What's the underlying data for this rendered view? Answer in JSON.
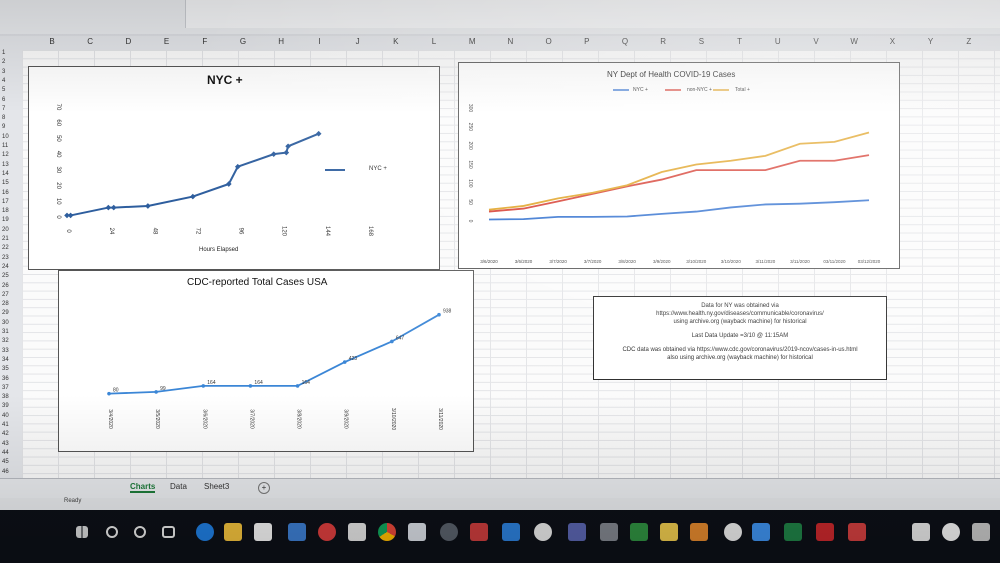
{
  "excel": {
    "columns": [
      "B",
      "C",
      "D",
      "E",
      "F",
      "G",
      "H",
      "I",
      "J",
      "K",
      "L",
      "M",
      "N",
      "O",
      "P",
      "Q",
      "R",
      "S",
      "T",
      "U",
      "V",
      "W",
      "X",
      "Y",
      "Z"
    ],
    "rows": [
      "1",
      "2",
      "3",
      "4",
      "5",
      "6",
      "7",
      "8",
      "9",
      "10",
      "11",
      "12",
      "13",
      "14",
      "15",
      "16",
      "17",
      "18",
      "19",
      "20",
      "21",
      "22",
      "23",
      "24",
      "25",
      "26",
      "27",
      "28",
      "29",
      "30",
      "31",
      "32",
      "33",
      "34",
      "35",
      "36",
      "37",
      "38",
      "39",
      "40",
      "41",
      "42",
      "43",
      "44",
      "45",
      "46"
    ],
    "sheet_tabs": [
      "Charts",
      "Data",
      "Sheet3"
    ],
    "add_sheet": "+",
    "status": "Ready"
  },
  "chart_data": [
    {
      "type": "line",
      "title": "NYC +",
      "xlabel": "Hours Elapsed",
      "ylabel": "",
      "x_ticks": [
        "0",
        "24",
        "48",
        "72",
        "96",
        "120",
        "144",
        "168"
      ],
      "y_ticks": [
        "0",
        "10",
        "20",
        "30",
        "40",
        "50",
        "60",
        "70"
      ],
      "xlim": [
        0,
        168
      ],
      "ylim": [
        0,
        70
      ],
      "legend": "right",
      "color": "#2e5e9e",
      "series": [
        {
          "name": "NYC +",
          "x": [
            0,
            2,
            23,
            26,
            45,
            70,
            90,
            95,
            115,
            122,
            123,
            140
          ],
          "y": [
            1,
            1,
            6,
            6,
            7,
            13,
            21,
            32,
            40,
            41,
            45,
            53
          ]
        }
      ]
    },
    {
      "type": "line",
      "title": "NY Dept of Health COVID-19 Cases",
      "legend": "top",
      "y_ticks": [
        "0",
        "50",
        "100",
        "150",
        "200",
        "250",
        "300"
      ],
      "ylim": [
        0,
        300
      ],
      "categories": [
        "3/6/2020",
        "3/6/2020",
        "3/7/2020",
        "3/7/2020",
        "3/8/2020",
        "3/9/2020",
        "3/10/2020",
        "3/10/2020",
        "3/11/2020",
        "3/11/2020",
        "03/11/2020",
        "03/12/2020"
      ],
      "series": [
        {
          "name": "NYC +",
          "color": "#2f6fcf",
          "values": [
            4,
            5,
            11,
            11,
            12,
            19,
            25,
            36,
            44,
            46,
            50,
            55
          ]
        },
        {
          "name": "non-NYC +",
          "color": "#d63b2f",
          "values": [
            25,
            33,
            52,
            72,
            92,
            110,
            135,
            135,
            135,
            160,
            160,
            175
          ]
        },
        {
          "name": "Total +",
          "color": "#e0a120",
          "values": [
            30,
            40,
            60,
            75,
            95,
            130,
            150,
            160,
            173,
            205,
            210,
            235
          ]
        }
      ]
    },
    {
      "type": "line",
      "title": "CDC-reported Total Cases USA",
      "categories": [
        "3/4/2020",
        "3/5/2020",
        "3/6/2020",
        "3/7/2020",
        "3/8/2020",
        "3/9/2020",
        "3/10/2020",
        "3/11/2020"
      ],
      "series": [
        {
          "name": "",
          "color": "#3b86d6",
          "values": [
            80,
            99,
            164,
            164,
            164,
            423,
            647,
            938
          ]
        }
      ],
      "data_labels": [
        "80",
        "99",
        "164",
        "164",
        "164",
        "423",
        "647",
        "938"
      ],
      "ylim": [
        0,
        1000
      ]
    }
  ],
  "notes_box": {
    "line1": "Data for NY was obtained via",
    "line2": "https://www.health.ny.gov/diseases/communicable/coronavirus/",
    "line3": "using archive.org (wayback machine) for historical",
    "line4": "Last Data Update =3/10 @ 11:15AM",
    "line5": "CDC data was obtained via https://www.cdc.gov/coronavirus/2019-ncov/cases-in-us.html",
    "line6": "also using archive.org (wayback machine) for historical"
  }
}
